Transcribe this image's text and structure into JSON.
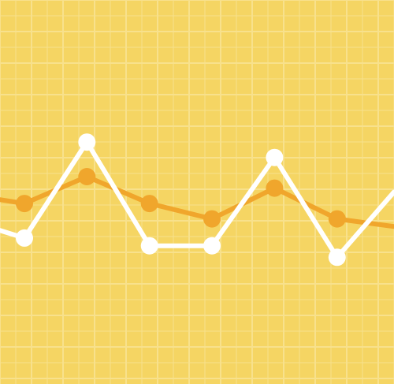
{
  "colors": {
    "background": "#f5d563",
    "grid": "#f8e18c",
    "series_orange": "#f0a62c",
    "series_white": "#ffffff"
  },
  "chart_data": {
    "type": "line",
    "title": "",
    "xlabel": "",
    "ylabel": "",
    "grid": true,
    "legend": "none",
    "x": [
      0,
      1,
      2,
      3,
      4,
      5,
      6,
      7,
      8,
      9,
      10,
      11,
      12
    ],
    "xlim": [
      0,
      12.6
    ],
    "ylim": [
      0,
      10
    ],
    "series": [
      {
        "color": "#f0a62c",
        "points": [
          {
            "x": 0.0,
            "y": 4.8
          },
          {
            "x": 0.78,
            "y": 4.7
          },
          {
            "x": 2.78,
            "y": 5.4
          },
          {
            "x": 4.78,
            "y": 4.7
          },
          {
            "x": 6.78,
            "y": 4.3
          },
          {
            "x": 8.78,
            "y": 5.1
          },
          {
            "x": 10.78,
            "y": 4.3
          },
          {
            "x": 12.6,
            "y": 4.1
          }
        ],
        "markers": [
          1,
          2,
          3,
          4,
          5,
          6
        ]
      },
      {
        "color": "#ffffff",
        "points": [
          {
            "x": 0.0,
            "y": 4.0
          },
          {
            "x": 0.78,
            "y": 3.8
          },
          {
            "x": 2.78,
            "y": 6.3
          },
          {
            "x": 4.78,
            "y": 3.6
          },
          {
            "x": 6.78,
            "y": 3.6
          },
          {
            "x": 8.78,
            "y": 5.9
          },
          {
            "x": 10.78,
            "y": 3.3
          },
          {
            "x": 12.6,
            "y": 5.0
          }
        ],
        "markers": [
          1,
          2,
          3,
          4,
          5,
          6
        ]
      }
    ]
  }
}
